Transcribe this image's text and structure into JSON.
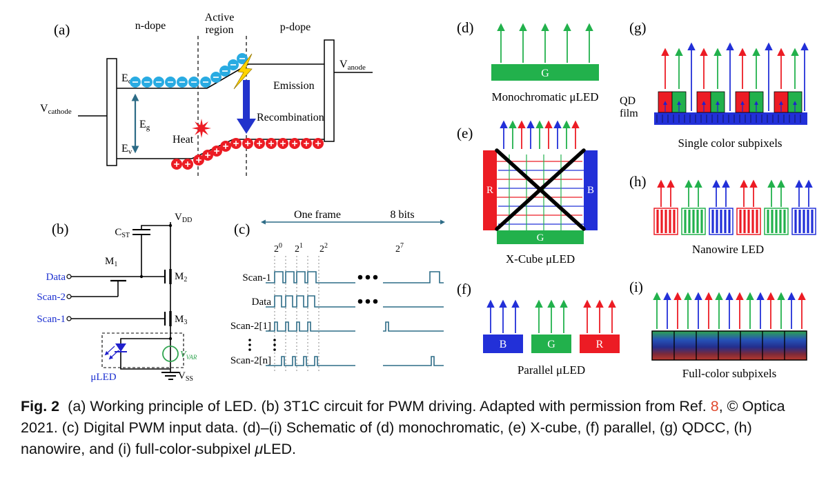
{
  "colors": {
    "red": "#EC1C24",
    "green": "#22B14C",
    "blue": "#2230D8",
    "electron_blue": "#29ABE2",
    "waveform_teal": "#2C6B86",
    "circuit_blue": "#1B2FD0",
    "vvar_green": "#2FA44F",
    "link_red": "#E04A2F"
  },
  "panel_a": {
    "label": "(a)",
    "n_dope": "n-dope",
    "active_region_line1": "Active",
    "active_region_line2": "region",
    "p_dope": "p-dope",
    "v_cathode_main": "V",
    "v_cathode_sub": "cathode",
    "v_anode_main": "V",
    "v_anode_sub": "anode",
    "ec_main": "E",
    "ec_sub": "c",
    "ev_main": "E",
    "ev_sub": "v",
    "eg_main": "E",
    "eg_sub": "g",
    "emission": "Emission",
    "recombination": "Recombination",
    "heat": "Heat"
  },
  "panel_b": {
    "label": "(b)",
    "vdd_main": "V",
    "vdd_sub": "DD",
    "cst_main": "C",
    "cst_sub": "ST",
    "m1_main": "M",
    "m1_sub": "1",
    "m2_main": "M",
    "m2_sub": "2",
    "m3_main": "M",
    "m3_sub": "3",
    "data": "Data",
    "scan2": "Scan-2",
    "scan1": "Scan-1",
    "uled": "μLED",
    "vvar_main": "V",
    "vvar_sub": "VAR",
    "vss_main": "V",
    "vss_sub": "SS"
  },
  "panel_c": {
    "label": "(c)",
    "one_frame": "One frame",
    "eight_bits": "8 bits",
    "bit_base": "2",
    "exp0": "0",
    "exp1": "1",
    "exp2": "2",
    "exp7": "7",
    "row_scan1": "Scan-1",
    "row_data": "Data",
    "row_scan2_1": "Scan-2[1]",
    "row_scan2_n": "Scan-2[n]"
  },
  "panel_d": {
    "label": "(d)",
    "chip_label": "G",
    "caption": "Monochromatic μLED"
  },
  "panel_e": {
    "label": "(e)",
    "r": "R",
    "g": "G",
    "b": "B",
    "caption": "X-Cube μLED"
  },
  "panel_f": {
    "label": "(f)",
    "b": "B",
    "g": "G",
    "r": "R",
    "caption": "Parallel μLED"
  },
  "panel_g": {
    "label": "(g)",
    "qd_line1": "QD",
    "qd_line2": "film",
    "caption": "Single color subpixels"
  },
  "panel_h": {
    "label": "(h)",
    "caption": "Nanowire LED"
  },
  "panel_i": {
    "label": "(i)",
    "caption": "Full-color subpixels"
  },
  "caption": {
    "fig_label": "Fig. 2",
    "before_ref": "(a) Working principle of LED. (b) 3T1C circuit for PWM driving. Adapted with permission from Ref. ",
    "ref_number": "8",
    "after_ref": ", © Optica 2021. (c) Digital PWM input data. (d)–(i) Schematic of (d) monochromatic, (e) X-cube, (f) parallel, (g) QDCC, (h) nanowire, and (i) full-color-subpixel ",
    "mu": "μ",
    "led": "LED."
  }
}
